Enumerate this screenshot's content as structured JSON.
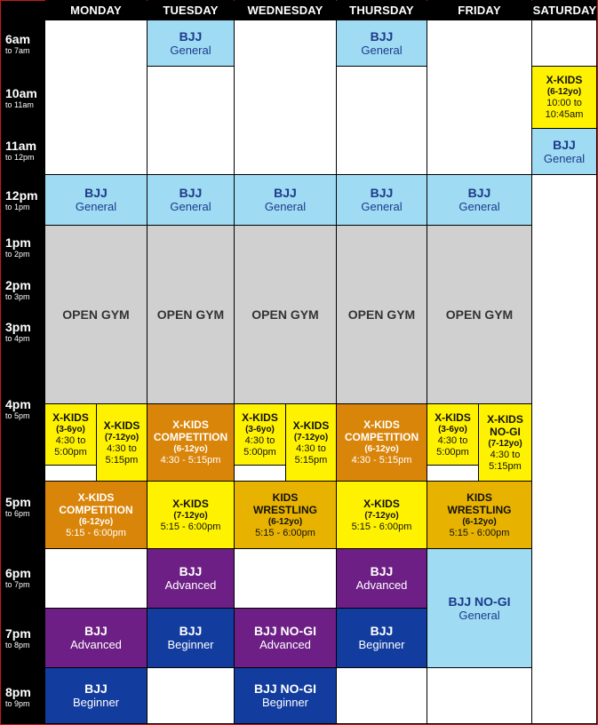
{
  "days": [
    "MONDAY",
    "TUESDAY",
    "WEDNESDAY",
    "THURSDAY",
    "FRIDAY",
    "SATURDAY"
  ],
  "times": [
    {
      "hour": "6am",
      "range": "to 7am"
    },
    {
      "hour": "10am",
      "range": "to 11am"
    },
    {
      "hour": "11am",
      "range": "to 12pm"
    },
    {
      "hour": "12pm",
      "range": "to 1pm"
    },
    {
      "hour": "1pm",
      "range": "to 2pm"
    },
    {
      "hour": "2pm",
      "range": "to 3pm"
    },
    {
      "hour": "3pm",
      "range": "to 4pm"
    },
    {
      "hour": "4pm",
      "range": "to 5pm"
    },
    {
      "hour": "5pm",
      "range": "to 6pm"
    },
    {
      "hour": "6pm",
      "range": "to 7pm"
    },
    {
      "hour": "7pm",
      "range": "to 8pm"
    },
    {
      "hour": "8pm",
      "range": "to 9pm"
    }
  ],
  "classes": {
    "bjj": "BJJ",
    "general": "General",
    "advanced": "Advanced",
    "beginner": "Beginner",
    "bjj_nogi": "BJJ NO-GI",
    "open_gym": "OPEN GYM",
    "xkids": "X-KIDS",
    "xkids_nogi": "NO-GI",
    "competition": "COMPETITION",
    "kids": "KIDS",
    "wrestling": "WRESTLING",
    "age_3_6": "(3-6yo)",
    "age_7_12": "(7-12yo)",
    "age_6_12": "(6-12yo)",
    "t_430": "4:30 to",
    "t_500": "5:00pm",
    "t_515": "5:15pm",
    "t_430_515": "4:30 - 5:15pm",
    "t_515_600": "5:15 - 6:00pm",
    "t_10_to": "10:00 to",
    "t_1045": "10:45am"
  }
}
